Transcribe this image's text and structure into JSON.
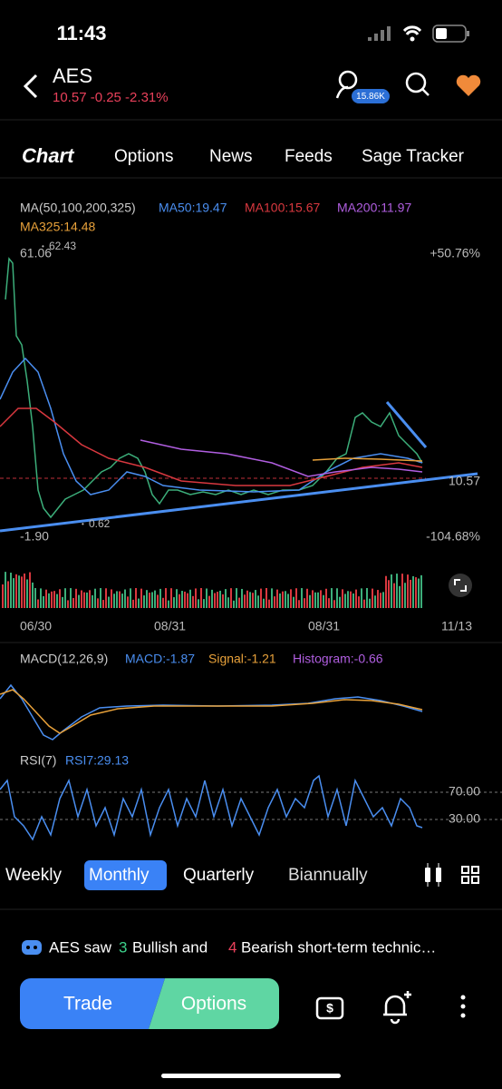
{
  "status_bar": {
    "time": "11:43"
  },
  "header": {
    "ticker": "AES",
    "quote": "10.57 -0.25 -2.31%",
    "followers": "15.86K"
  },
  "tabs": [
    "Chart",
    "Options",
    "News",
    "Feeds",
    "Sage Tracker"
  ],
  "ma_legend": {
    "label": "MA(50,100,200,325)",
    "ma50": "MA50:19.47",
    "ma100": "MA100:15.67",
    "ma200": "MA200:11.97",
    "ma325": "MA325:14.48"
  },
  "price_labels": {
    "high": "61.06",
    "high_marker": "62.43",
    "top_pct": "+50.76%",
    "current": "10.57",
    "low": "-1.90",
    "low_marker": "0.62",
    "bottom_pct": "-104.68%"
  },
  "dates": [
    "06/30",
    "08/31",
    "08/31",
    "11/13"
  ],
  "macd_legend": {
    "label": "MACD(12,26,9)",
    "macd": "MACD:-1.87",
    "signal": "Signal:-1.21",
    "histogram": "Histogram:-0.66"
  },
  "rsi_legend": {
    "label": "RSI(7)",
    "rsi": "RSI7:29.13",
    "upper": "70.00",
    "lower": "30.00"
  },
  "periods": [
    "Weekly",
    "Monthly",
    "Quarterly",
    "Biannually"
  ],
  "banner": {
    "prefix": "AES saw",
    "bullish_count": "3",
    "middle": "Bullish and",
    "bearish_count": "4",
    "suffix": "Bearish short-term technic…"
  },
  "buttons": {
    "trade": "Trade",
    "options": "Options"
  }
}
